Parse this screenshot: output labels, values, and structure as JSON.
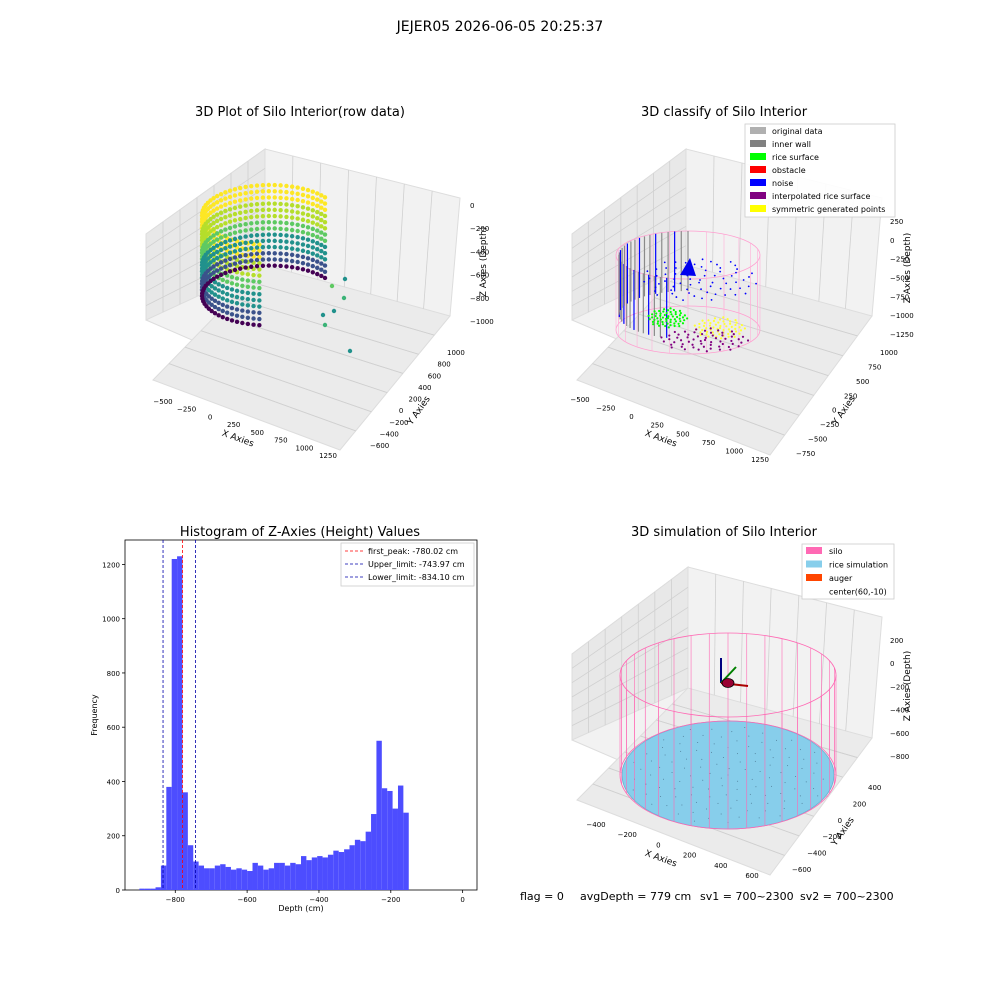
{
  "suptitle": "JEJER05 2026-06-05 20:25:37",
  "footer": {
    "flag": "flag = 0",
    "avg": "avgDepth = 779 cm",
    "sv1": "sv1 = 700~2300",
    "sv2": "sv2 = 700~2300"
  },
  "colors": {
    "hist": "#4d4dff",
    "first_peak": "#ff0000",
    "limits": "#0000aa",
    "silo": "#ff69b4",
    "rice": "#87ceeb",
    "auger": "#ff4500"
  },
  "chart_data": [
    {
      "type": "scatter",
      "projection": "3d",
      "title": "3D Plot of Silo Interior(row data)",
      "xlabel": "X Axies",
      "ylabel": "Y Axies",
      "zlabel": "Z Axies (Depth)",
      "xticks": [
        "−500",
        "−250",
        "0",
        "250",
        "500",
        "750",
        "1000",
        "1250"
      ],
      "yticks": [
        "−600",
        "−400",
        "−200",
        "0",
        "200",
        "400",
        "600",
        "800",
        "1000"
      ],
      "zticks": [
        "0",
        "−200",
        "−400",
        "−600",
        "−800",
        "−1000"
      ],
      "colormap": "viridis"
    },
    {
      "type": "scatter",
      "projection": "3d",
      "title": "3D classify of Silo Interior",
      "xlabel": "X Axies",
      "ylabel": "Y Axies",
      "zlabel": "Z Axies (Depth)",
      "xticks": [
        "−500",
        "−250",
        "0",
        "250",
        "500",
        "750",
        "1000",
        "1250"
      ],
      "yticks": [
        "−750",
        "−500",
        "−250",
        "0",
        "250",
        "500",
        "750",
        "1000"
      ],
      "zticks": [
        "250",
        "0",
        "−250",
        "−500",
        "−750",
        "−1000",
        "−1250"
      ],
      "legend_position": "top-right",
      "legend": [
        {
          "label": "original data",
          "color": "#b0b0b0"
        },
        {
          "label": "inner wall",
          "color": "#808080"
        },
        {
          "label": "rice surface",
          "color": "#00ff00"
        },
        {
          "label": "obstacle",
          "color": "#ff0000"
        },
        {
          "label": "noise",
          "color": "#0000ff"
        },
        {
          "label": "interpolated rice surface",
          "color": "#800080"
        },
        {
          "label": "symmetric generated points",
          "color": "#ffff00"
        }
      ]
    },
    {
      "type": "bar",
      "title": "Histogram of Z-Axies (Height) Values",
      "xlabel": "Depth (cm)",
      "ylabel": "Frequency",
      "xlim": [
        -940,
        40
      ],
      "ylim": [
        0,
        1290
      ],
      "xticks": [
        -800,
        -600,
        -400,
        -200,
        0
      ],
      "xtick_labels": [
        "−800",
        "−600",
        "−400",
        "−200",
        "0"
      ],
      "yticks": [
        0,
        200,
        400,
        600,
        800,
        1000,
        1200
      ],
      "bin_width": 15,
      "bin_start": -900,
      "values": [
        5,
        5,
        5,
        10,
        90,
        380,
        1220,
        1230,
        360,
        165,
        105,
        90,
        80,
        80,
        90,
        95,
        85,
        75,
        80,
        75,
        70,
        100,
        90,
        75,
        80,
        100,
        100,
        90,
        100,
        95,
        125,
        110,
        120,
        125,
        120,
        130,
        145,
        140,
        150,
        165,
        185,
        180,
        215,
        280,
        550,
        375,
        365,
        300,
        385,
        285
      ],
      "vlines": [
        {
          "x": -780.02,
          "label": "first_peak: -780.02 cm",
          "color": "#ff0000"
        },
        {
          "x": -743.97,
          "label": "Upper_limit: -743.97 cm",
          "color": "#0000aa"
        },
        {
          "x": -834.1,
          "label": "Lower_limit: -834.10 cm",
          "color": "#0000aa"
        }
      ],
      "legend_position": "top-right"
    },
    {
      "type": "surface",
      "projection": "3d",
      "title": "3D simulation of Silo Interior",
      "xlabel": "X Axies",
      "ylabel": "Y Axies",
      "zlabel": "Z Axies (Depth)",
      "xticks": [
        "−400",
        "−200",
        "0",
        "200",
        "400",
        "600"
      ],
      "yticks": [
        "−600",
        "−400",
        "−200",
        "0",
        "200",
        "400"
      ],
      "zticks": [
        "200",
        "0",
        "−200",
        "−400",
        "−600",
        "−800"
      ],
      "legend_position": "top-right",
      "legend": [
        {
          "label": "silo",
          "color": "#ff69b4"
        },
        {
          "label": "rice simulation",
          "color": "#87ceeb"
        },
        {
          "label": "auger",
          "color": "#ff4500"
        },
        {
          "label": "center(60,-10)",
          "color": ""
        }
      ]
    }
  ]
}
